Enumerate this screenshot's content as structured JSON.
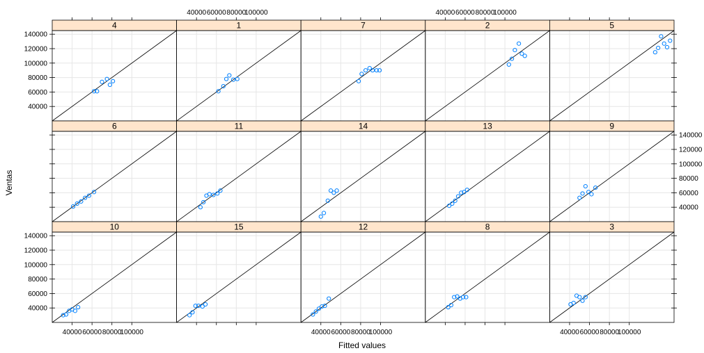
{
  "chart_data": {
    "type": "scatter",
    "title": "",
    "xlabel": "Fitted values",
    "ylabel": "Ventas",
    "xlim": [
      20000,
      145000
    ],
    "ylim": [
      20000,
      145000
    ],
    "x_ticks": [
      40000,
      60000,
      80000,
      100000
    ],
    "x_tick_labels": [
      "40000",
      "60000",
      "80000",
      "100000"
    ],
    "y_ticks": [
      40000,
      60000,
      80000,
      100000,
      120000,
      140000
    ],
    "y_tick_labels": [
      "40000",
      "60000",
      "80000",
      "100000",
      "120000",
      "140000"
    ],
    "grid": true,
    "reference_line": "y = x",
    "layout": {
      "rows": 3,
      "cols": 5
    },
    "colors": {
      "strip_fill": "#ffe5cc",
      "point": "#0080ff",
      "grid": "#e6e6e6",
      "line": "#000000"
    },
    "panels": [
      {
        "label": "4",
        "x": [
          62000,
          65000,
          70000,
          75000,
          78000,
          81000
        ],
        "y": [
          61000,
          61000,
          74000,
          78000,
          70000,
          75000
        ]
      },
      {
        "label": "1",
        "x": [
          62000,
          67000,
          70000,
          73000,
          77000,
          81000
        ],
        "y": [
          61000,
          68000,
          78000,
          83000,
          77000,
          78000
        ]
      },
      {
        "label": "7",
        "x": [
          78000,
          81000,
          85000,
          89000,
          92000,
          96000,
          99000
        ],
        "y": [
          75000,
          85000,
          90000,
          93000,
          90000,
          90000,
          90000
        ]
      },
      {
        "label": "2",
        "x": [
          104000,
          107000,
          110000,
          114000,
          117000,
          120000
        ],
        "y": [
          98000,
          106000,
          118000,
          127000,
          113000,
          110000
        ]
      },
      {
        "label": "5",
        "x": [
          126000,
          129000,
          132000,
          135000,
          138000,
          141000
        ],
        "y": [
          115000,
          121000,
          137000,
          127000,
          122000,
          131000
        ]
      },
      {
        "label": "6",
        "x": [
          41000,
          45000,
          49000,
          53000,
          57000,
          62000
        ],
        "y": [
          41000,
          45000,
          48000,
          53000,
          56000,
          61000
        ]
      },
      {
        "label": "11",
        "x": [
          44000,
          47000,
          50000,
          53000,
          57000,
          61000,
          64000
        ],
        "y": [
          40000,
          47000,
          56000,
          58000,
          57000,
          59000,
          63000
        ]
      },
      {
        "label": "14",
        "x": [
          40000,
          43000,
          47000,
          50000,
          53000,
          56000
        ],
        "y": [
          27000,
          32000,
          49000,
          63000,
          60000,
          63000
        ]
      },
      {
        "label": "13",
        "x": [
          44000,
          47000,
          50000,
          53000,
          56000,
          59000,
          62000
        ],
        "y": [
          42000,
          45000,
          49000,
          55000,
          60000,
          61000,
          64000
        ]
      },
      {
        "label": "9",
        "x": [
          50000,
          53000,
          56000,
          59000,
          62000,
          66000
        ],
        "y": [
          53000,
          59000,
          69000,
          61000,
          58000,
          67000
        ]
      },
      {
        "label": "10",
        "x": [
          31000,
          34000,
          37000,
          40000,
          43000,
          46000
        ],
        "y": [
          30000,
          31000,
          36000,
          38000,
          36000,
          41000
        ]
      },
      {
        "label": "15",
        "x": [
          33000,
          36000,
          39000,
          42000,
          46000,
          49000
        ],
        "y": [
          30000,
          34000,
          43000,
          43000,
          42000,
          45000
        ]
      },
      {
        "label": "12",
        "x": [
          32000,
          35000,
          38000,
          41000,
          44000,
          48000
        ],
        "y": [
          31000,
          35000,
          39000,
          42000,
          43000,
          53000
        ]
      },
      {
        "label": "8",
        "x": [
          43000,
          46000,
          49000,
          52000,
          55000,
          58000,
          61000
        ],
        "y": [
          41000,
          44000,
          55000,
          56000,
          53000,
          55000,
          55000
        ]
      },
      {
        "label": "3",
        "x": [
          41000,
          44000,
          47000,
          50000,
          53000,
          56000
        ],
        "y": [
          45000,
          47000,
          57000,
          55000,
          50000,
          55000
        ]
      }
    ]
  }
}
